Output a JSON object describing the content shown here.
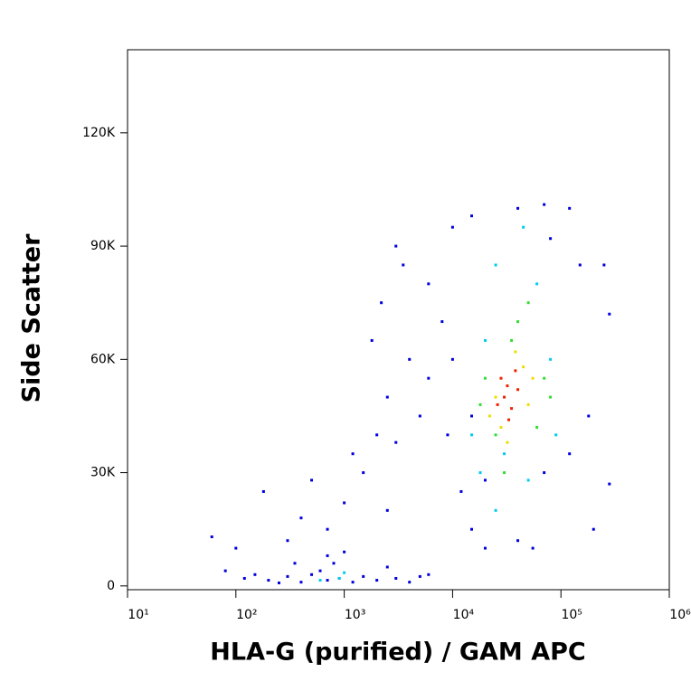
{
  "chart_data": {
    "type": "scatter",
    "x_label": "HLA-G (purified) / GAM APC",
    "y_label": "Side Scatter",
    "xscale": "log",
    "xlim": [
      10,
      1000000
    ],
    "ylim": [
      -1000,
      142000
    ],
    "xticks": [
      {
        "value": 10,
        "label": "10¹"
      },
      {
        "value": 100,
        "label": "10²"
      },
      {
        "value": 1000,
        "label": "10³"
      },
      {
        "value": 10000,
        "label": "10⁴"
      },
      {
        "value": 100000,
        "label": "10⁵"
      },
      {
        "value": 1000000,
        "label": "10⁶"
      }
    ],
    "yticks": [
      0,
      {
        "value": 30000,
        "label": "30K"
      },
      {
        "value": 60000,
        "label": "60K"
      },
      {
        "value": 90000,
        "label": "90K"
      },
      {
        "value": 120000,
        "label": "120K"
      }
    ],
    "series": [
      {
        "color": "#0000dd",
        "x": [
          120,
          200,
          300,
          400,
          500,
          700,
          900,
          1200,
          1500,
          2000,
          3000,
          4000,
          5000,
          150,
          250,
          600,
          800,
          1000,
          2500,
          6000,
          80,
          60,
          100,
          180,
          300,
          400,
          700,
          1000,
          1500,
          2000,
          2500,
          3000,
          4000,
          5000,
          6000,
          1800,
          2200,
          3500,
          3000,
          6000,
          8000,
          10000,
          12000,
          15000,
          20000,
          40000,
          55000,
          9000,
          10000,
          15000,
          40000,
          70000,
          120000,
          150000,
          250000,
          280000,
          200000,
          280000,
          180000,
          120000,
          70000,
          20000,
          15000,
          80000,
          2500,
          700,
          350,
          1200,
          500
        ],
        "values": [
          2000,
          1500,
          2500,
          1000,
          3000,
          1500,
          2000,
          1000,
          2500,
          1500,
          2000,
          1000,
          2500,
          3000,
          800,
          4000,
          6000,
          9000,
          5000,
          3000,
          4000,
          13000,
          10000,
          25000,
          12000,
          18000,
          15000,
          22000,
          30000,
          40000,
          50000,
          38000,
          60000,
          45000,
          55000,
          65000,
          75000,
          85000,
          90000,
          80000,
          70000,
          60000,
          25000,
          15000,
          10000,
          12000,
          10000,
          40000,
          95000,
          98000,
          100000,
          101000,
          100000,
          85000,
          85000,
          72000,
          15000,
          27000,
          45000,
          35000,
          30000,
          28000,
          45000,
          92000,
          20000,
          8000,
          6000,
          35000,
          28000
        ]
      },
      {
        "color": "#00ccee",
        "x": [
          900,
          600,
          1000,
          25000,
          60000,
          20000,
          80000,
          15000,
          90000,
          30000,
          50000,
          18000,
          45000,
          25000
        ],
        "values": [
          2000,
          1500,
          3500,
          85000,
          80000,
          65000,
          60000,
          40000,
          40000,
          35000,
          28000,
          30000,
          95000,
          20000
        ]
      },
      {
        "color": "#33dd33",
        "x": [
          20000,
          70000,
          25000,
          60000,
          40000,
          50000,
          30000,
          35000,
          18000,
          80000
        ],
        "values": [
          55000,
          55000,
          40000,
          42000,
          70000,
          75000,
          30000,
          65000,
          48000,
          50000
        ]
      },
      {
        "color": "#eedd00",
        "x": [
          25000,
          45000,
          28000,
          50000,
          38000,
          32000,
          55000,
          22000
        ],
        "values": [
          50000,
          58000,
          42000,
          48000,
          62000,
          38000,
          55000,
          45000
        ]
      },
      {
        "color": "#ee2200",
        "x": [
          30000,
          35000,
          28000,
          40000,
          33000,
          38000,
          26000,
          32000
        ],
        "values": [
          50000,
          47000,
          55000,
          52000,
          44000,
          57000,
          48000,
          53000
        ]
      }
    ]
  }
}
